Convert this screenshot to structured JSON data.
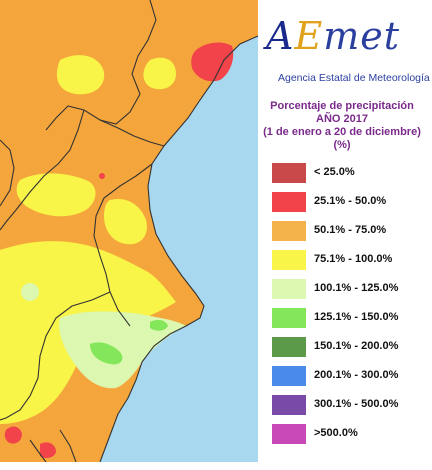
{
  "logo": {
    "word_a": "A",
    "word_e": "E",
    "word_met": "met",
    "agency": "Agencia Estatal de Meteorología"
  },
  "title": {
    "line1": "Porcentaje de precipitación",
    "line2": "AÑO 2017",
    "line3": "(1 de enero a 20 de diciembre)",
    "line4": "(%)"
  },
  "legend": [
    {
      "label": "< 25.0%",
      "color": "#c9484a"
    },
    {
      "label": "25.1% - 50.0%",
      "color": "#f2434a"
    },
    {
      "label": "50.1% - 75.0%",
      "color": "#f4b24a"
    },
    {
      "label": "75.1% - 100.0%",
      "color": "#f8f448"
    },
    {
      "label": "100.1% - 125.0%",
      "color": "#dcf8b0"
    },
    {
      "label": "125.1% - 150.0%",
      "color": "#84e65a"
    },
    {
      "label": "150.1% - 200.0%",
      "color": "#5a9a48"
    },
    {
      "label": "200.1% - 300.0%",
      "color": "#4a8ae8"
    },
    {
      "label": "300.1% - 500.0%",
      "color": "#7a4aa8"
    },
    {
      "label": ">500.0%",
      "color": "#c848b8"
    }
  ],
  "map": {
    "sea_color": "#a8d8f0",
    "base_color": "#f4a63c"
  }
}
